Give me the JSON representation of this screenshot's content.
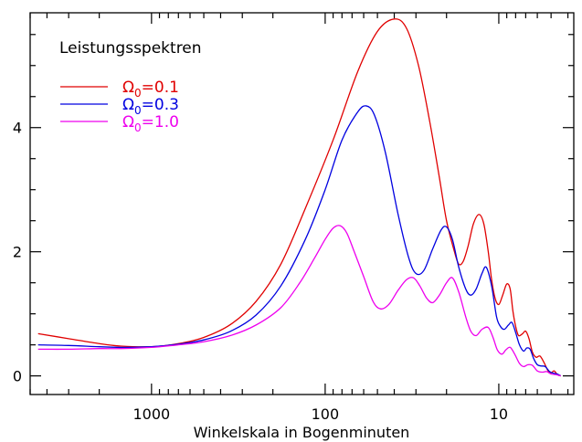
{
  "chart_data": {
    "type": "line",
    "title": "",
    "legend_title": "Leistungsspektren",
    "legend_placement": "top-left",
    "xlabel": "Winkelskala in Bogenminuten",
    "ylabel": "",
    "x_scale": "log",
    "x_reversed": true,
    "xlim": [
      5000,
      3.7
    ],
    "ylim": [
      -0.3,
      5.85
    ],
    "x_ticks": [
      1000,
      100,
      10
    ],
    "x_tick_labels": [
      "1000",
      "100",
      "10"
    ],
    "y_ticks": [
      0,
      2,
      4
    ],
    "y_tick_labels": [
      "0",
      "2",
      "4"
    ],
    "grid": false,
    "series": [
      {
        "name": "Ω₀=0.1",
        "name_symbol": "Ω",
        "name_sub": "0",
        "name_value": "=0.1",
        "color": "#e00000",
        "points": [
          [
            4500,
            0.68
          ],
          [
            3000,
            0.6
          ],
          [
            2000,
            0.52
          ],
          [
            1500,
            0.48
          ],
          [
            1000,
            0.47
          ],
          [
            700,
            0.52
          ],
          [
            500,
            0.62
          ],
          [
            350,
            0.83
          ],
          [
            250,
            1.2
          ],
          [
            180,
            1.8
          ],
          [
            130,
            2.7
          ],
          [
            90,
            3.8
          ],
          [
            65,
            4.9
          ],
          [
            50,
            5.55
          ],
          [
            40,
            5.75
          ],
          [
            34,
            5.6
          ],
          [
            29,
            5.0
          ],
          [
            25,
            4.1
          ],
          [
            22,
            3.2
          ],
          [
            20,
            2.5
          ],
          [
            18,
            2.0
          ],
          [
            17,
            1.8
          ],
          [
            16,
            1.85
          ],
          [
            15,
            2.1
          ],
          [
            14,
            2.45
          ],
          [
            13,
            2.6
          ],
          [
            12.2,
            2.45
          ],
          [
            11.5,
            2.0
          ],
          [
            11,
            1.55
          ],
          [
            10.5,
            1.25
          ],
          [
            10,
            1.15
          ],
          [
            9.5,
            1.3
          ],
          [
            9,
            1.48
          ],
          [
            8.6,
            1.4
          ],
          [
            8.3,
            1.05
          ],
          [
            8,
            0.8
          ],
          [
            7.7,
            0.65
          ],
          [
            7.3,
            0.68
          ],
          [
            7,
            0.72
          ],
          [
            6.7,
            0.6
          ],
          [
            6.4,
            0.38
          ],
          [
            6.1,
            0.3
          ],
          [
            5.8,
            0.32
          ],
          [
            5.5,
            0.22
          ],
          [
            5.2,
            0.08
          ],
          [
            5,
            0.05
          ],
          [
            4.8,
            0.08
          ],
          [
            4.6,
            0.02
          ],
          [
            4.4,
            0
          ]
        ]
      },
      {
        "name": "Ω₀=0.3",
        "name_symbol": "Ω",
        "name_sub": "0",
        "name_value": "=0.3",
        "color": "#0000e0",
        "points": [
          [
            4500,
            0.5
          ],
          [
            3000,
            0.49
          ],
          [
            2000,
            0.47
          ],
          [
            1500,
            0.46
          ],
          [
            1000,
            0.47
          ],
          [
            700,
            0.51
          ],
          [
            500,
            0.58
          ],
          [
            350,
            0.72
          ],
          [
            250,
            0.98
          ],
          [
            180,
            1.45
          ],
          [
            130,
            2.2
          ],
          [
            100,
            3.0
          ],
          [
            80,
            3.8
          ],
          [
            65,
            4.25
          ],
          [
            58,
            4.35
          ],
          [
            52,
            4.2
          ],
          [
            45,
            3.6
          ],
          [
            38,
            2.6
          ],
          [
            33,
            1.9
          ],
          [
            30,
            1.65
          ],
          [
            27,
            1.7
          ],
          [
            24,
            2.05
          ],
          [
            21.5,
            2.35
          ],
          [
            20,
            2.4
          ],
          [
            18.5,
            2.2
          ],
          [
            17,
            1.75
          ],
          [
            15.5,
            1.4
          ],
          [
            14.5,
            1.3
          ],
          [
            13.5,
            1.4
          ],
          [
            12.5,
            1.65
          ],
          [
            11.8,
            1.75
          ],
          [
            11,
            1.45
          ],
          [
            10.3,
            0.95
          ],
          [
            9.8,
            0.8
          ],
          [
            9.3,
            0.75
          ],
          [
            8.8,
            0.82
          ],
          [
            8.4,
            0.86
          ],
          [
            8,
            0.7
          ],
          [
            7.6,
            0.5
          ],
          [
            7.2,
            0.4
          ],
          [
            6.9,
            0.45
          ],
          [
            6.6,
            0.43
          ],
          [
            6.3,
            0.28
          ],
          [
            6,
            0.18
          ],
          [
            5.7,
            0.16
          ],
          [
            5.4,
            0.15
          ],
          [
            5.1,
            0.07
          ],
          [
            4.8,
            0.04
          ],
          [
            4.6,
            0.03
          ],
          [
            4.4,
            0
          ]
        ]
      },
      {
        "name": "Ω₀=1.0",
        "name_symbol": "Ω",
        "name_sub": "0",
        "name_value": "=1.0",
        "color": "#ee00ee",
        "points": [
          [
            4500,
            0.43
          ],
          [
            3000,
            0.43
          ],
          [
            2000,
            0.44
          ],
          [
            1500,
            0.44
          ],
          [
            1000,
            0.46
          ],
          [
            700,
            0.5
          ],
          [
            500,
            0.55
          ],
          [
            350,
            0.65
          ],
          [
            250,
            0.82
          ],
          [
            180,
            1.1
          ],
          [
            140,
            1.5
          ],
          [
            115,
            1.9
          ],
          [
            100,
            2.2
          ],
          [
            90,
            2.38
          ],
          [
            82,
            2.42
          ],
          [
            75,
            2.3
          ],
          [
            68,
            2.0
          ],
          [
            60,
            1.6
          ],
          [
            53,
            1.2
          ],
          [
            48,
            1.08
          ],
          [
            43,
            1.15
          ],
          [
            38,
            1.38
          ],
          [
            34,
            1.55
          ],
          [
            31,
            1.58
          ],
          [
            28.5,
            1.45
          ],
          [
            26,
            1.25
          ],
          [
            24,
            1.18
          ],
          [
            22,
            1.3
          ],
          [
            20,
            1.5
          ],
          [
            18.5,
            1.58
          ],
          [
            17,
            1.35
          ],
          [
            15.5,
            0.95
          ],
          [
            14.5,
            0.72
          ],
          [
            13.5,
            0.65
          ],
          [
            12.5,
            0.75
          ],
          [
            11.5,
            0.78
          ],
          [
            10.8,
            0.62
          ],
          [
            10.2,
            0.42
          ],
          [
            9.6,
            0.35
          ],
          [
            9.1,
            0.42
          ],
          [
            8.6,
            0.46
          ],
          [
            8.1,
            0.35
          ],
          [
            7.6,
            0.2
          ],
          [
            7.2,
            0.15
          ],
          [
            6.8,
            0.18
          ],
          [
            6.4,
            0.17
          ],
          [
            6,
            0.08
          ],
          [
            5.6,
            0.06
          ],
          [
            5.3,
            0.07
          ],
          [
            5,
            0.03
          ],
          [
            4.7,
            0.02
          ],
          [
            4.4,
            0
          ]
        ]
      }
    ]
  }
}
